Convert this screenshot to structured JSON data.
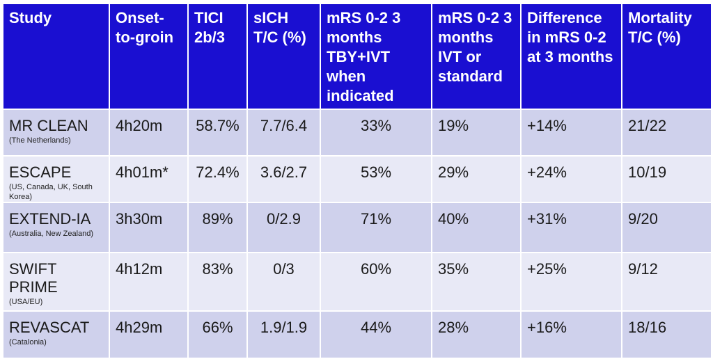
{
  "headers": [
    "Study",
    "Onset-to-groin",
    "TICI 2b/3",
    "sICH T/C (%)",
    "mRS 0-2 3 months TBY+IVT when indicated",
    "mRS 0-2 3 months IVT or standard",
    "Difference in mRS 0-2 at 3 months",
    "Mortality T/C (%)"
  ],
  "rows": [
    {
      "study": "MR CLEAN",
      "region": "(The Netherlands)",
      "onset": "4h20m",
      "tici": "58.7%",
      "sich": "7.7/6.4",
      "mrs_tby": "33%",
      "mrs_ivt": "19%",
      "diff": "+14%",
      "mortality": "21/22"
    },
    {
      "study": "ESCAPE",
      "region": "(US, Canada, UK, South Korea)",
      "onset": "4h01m*",
      "tici": "72.4%",
      "sich": "3.6/2.7",
      "mrs_tby": "53%",
      "mrs_ivt": "29%",
      "diff": "+24%",
      "mortality": "10/19"
    },
    {
      "study": "EXTEND-IA",
      "region": "(Australia, New Zealand)",
      "onset": "3h30m",
      "tici": "89%",
      "sich": "0/2.9",
      "mrs_tby": "71%",
      "mrs_ivt": "40%",
      "diff": "+31%",
      "mortality": "9/20"
    },
    {
      "study": "SWIFT PRIME",
      "region": "(USA/EU)",
      "onset": "4h12m",
      "tici": "83%",
      "sich": "0/3",
      "mrs_tby": "60%",
      "mrs_ivt": "35%",
      "diff": "+25%",
      "mortality": "9/12"
    },
    {
      "study": "REVASCAT",
      "region": "(Catalonia)",
      "onset": "4h29m",
      "tici": "66%",
      "sich": "1.9/1.9",
      "mrs_tby": "44%",
      "mrs_ivt": "28%",
      "diff": "+16%",
      "mortality": "18/16"
    }
  ],
  "colors": {
    "header_bg": "#1a0fd1",
    "row_dark": "#cfd1ec",
    "row_light": "#e8e9f6"
  }
}
